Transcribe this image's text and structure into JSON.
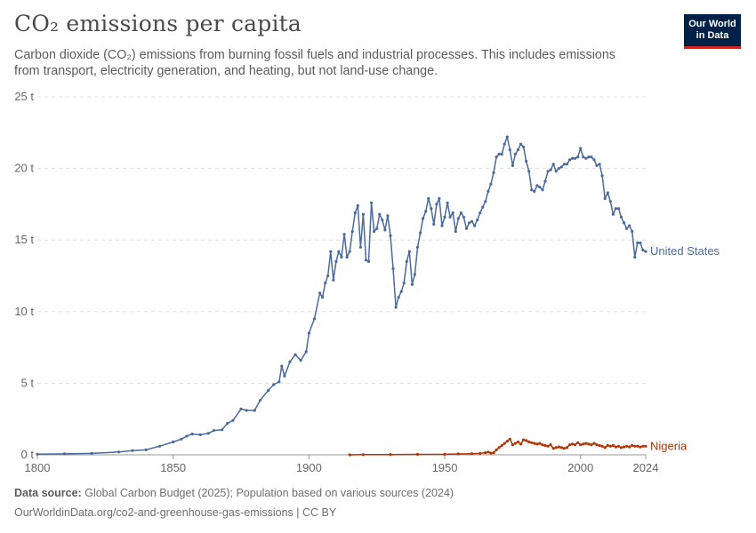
{
  "header": {
    "title": "CO₂ emissions per capita",
    "subtitle": "Carbon dioxide (CO₂) emissions from burning fossil fuels and industrial processes. This includes emissions from transport, electricity generation, and heating, but not land-use change.",
    "logo_line1": "Our World",
    "logo_line2": "in Data"
  },
  "footer": {
    "source_label": "Data source:",
    "source_text": "Global Carbon Budget (2025); Population based on various sources (2024)",
    "url_text": "OurWorldinData.org/co2-and-greenhouse-gas-emissions | CC BY"
  },
  "colors": {
    "united_states": "#4c6a9c",
    "nigeria": "#b13507",
    "grid": "#dddddd",
    "axis": "#999999"
  },
  "chart_data": {
    "type": "line",
    "xlim": [
      1800,
      2024
    ],
    "ylim": [
      0,
      25
    ],
    "x_ticks": [
      {
        "value": 1800,
        "label": "1800"
      },
      {
        "value": 1850,
        "label": "1850"
      },
      {
        "value": 1900,
        "label": "1900"
      },
      {
        "value": 1950,
        "label": "1950"
      },
      {
        "value": 2000,
        "label": "2000"
      },
      {
        "value": 2024,
        "label": "2024"
      }
    ],
    "y_ticks": [
      {
        "value": 0,
        "label": "0 t"
      },
      {
        "value": 5,
        "label": "5 t"
      },
      {
        "value": 10,
        "label": "10 t"
      },
      {
        "value": 15,
        "label": "15 t"
      },
      {
        "value": 20,
        "label": "20 t"
      },
      {
        "value": 25,
        "label": "25 t"
      }
    ],
    "grid": "horizontal dashed",
    "legend": "inline labels at line ends",
    "series": [
      {
        "name": "United States",
        "color": "#4c6a9c",
        "points": [
          [
            1800,
            0.05
          ],
          [
            1810,
            0.07
          ],
          [
            1820,
            0.1
          ],
          [
            1830,
            0.2
          ],
          [
            1835,
            0.3
          ],
          [
            1840,
            0.35
          ],
          [
            1845,
            0.6
          ],
          [
            1850,
            0.9
          ],
          [
            1853,
            1.1
          ],
          [
            1855,
            1.3
          ],
          [
            1857,
            1.45
          ],
          [
            1860,
            1.4
          ],
          [
            1863,
            1.5
          ],
          [
            1865,
            1.7
          ],
          [
            1868,
            1.75
          ],
          [
            1870,
            2.2
          ],
          [
            1872,
            2.4
          ],
          [
            1875,
            3.2
          ],
          [
            1877,
            3.1
          ],
          [
            1880,
            3.1
          ],
          [
            1882,
            3.8
          ],
          [
            1885,
            4.5
          ],
          [
            1887,
            4.9
          ],
          [
            1889,
            5.1
          ],
          [
            1890,
            6.2
          ],
          [
            1891,
            5.5
          ],
          [
            1893,
            6.5
          ],
          [
            1895,
            7.0
          ],
          [
            1897,
            6.6
          ],
          [
            1899,
            7.2
          ],
          [
            1900,
            8.5
          ],
          [
            1902,
            9.5
          ],
          [
            1904,
            11.3
          ],
          [
            1905,
            11.0
          ],
          [
            1906,
            12.0
          ],
          [
            1907,
            12.5
          ],
          [
            1908,
            14.2
          ],
          [
            1909,
            12.2
          ],
          [
            1910,
            13.5
          ],
          [
            1911,
            14.2
          ],
          [
            1912,
            13.8
          ],
          [
            1913,
            15.4
          ],
          [
            1914,
            13.8
          ],
          [
            1915,
            14.2
          ],
          [
            1916,
            15.6
          ],
          [
            1917,
            16.9
          ],
          [
            1918,
            17.4
          ],
          [
            1919,
            14.5
          ],
          [
            1920,
            16.8
          ],
          [
            1921,
            13.6
          ],
          [
            1922,
            13.5
          ],
          [
            1923,
            17.6
          ],
          [
            1924,
            15.6
          ],
          [
            1925,
            15.8
          ],
          [
            1926,
            16.8
          ],
          [
            1927,
            16.4
          ],
          [
            1928,
            15.7
          ],
          [
            1929,
            16.7
          ],
          [
            1930,
            15.3
          ],
          [
            1931,
            13.0
          ],
          [
            1932,
            10.3
          ],
          [
            1933,
            11.0
          ],
          [
            1934,
            11.4
          ],
          [
            1935,
            12.0
          ],
          [
            1936,
            13.5
          ],
          [
            1937,
            14.2
          ],
          [
            1938,
            11.9
          ],
          [
            1939,
            12.6
          ],
          [
            1940,
            14.5
          ],
          [
            1941,
            15.5
          ],
          [
            1942,
            16.5
          ],
          [
            1943,
            17.0
          ],
          [
            1944,
            17.9
          ],
          [
            1945,
            17.2
          ],
          [
            1946,
            16.1
          ],
          [
            1947,
            17.5
          ],
          [
            1948,
            17.9
          ],
          [
            1949,
            16.0
          ],
          [
            1950,
            16.6
          ],
          [
            1951,
            17.6
          ],
          [
            1952,
            16.6
          ],
          [
            1953,
            16.9
          ],
          [
            1954,
            15.6
          ],
          [
            1955,
            16.5
          ],
          [
            1956,
            16.9
          ],
          [
            1957,
            16.6
          ],
          [
            1958,
            15.8
          ],
          [
            1959,
            16.2
          ],
          [
            1960,
            16.3
          ],
          [
            1961,
            16.0
          ],
          [
            1962,
            16.4
          ],
          [
            1963,
            16.9
          ],
          [
            1964,
            17.3
          ],
          [
            1965,
            17.7
          ],
          [
            1966,
            18.4
          ],
          [
            1967,
            18.9
          ],
          [
            1968,
            19.7
          ],
          [
            1969,
            20.8
          ],
          [
            1970,
            21.0
          ],
          [
            1971,
            21.0
          ],
          [
            1972,
            21.7
          ],
          [
            1973,
            22.2
          ],
          [
            1974,
            21.3
          ],
          [
            1975,
            20.2
          ],
          [
            1976,
            21.0
          ],
          [
            1977,
            21.3
          ],
          [
            1978,
            21.7
          ],
          [
            1979,
            21.5
          ],
          [
            1980,
            20.5
          ],
          [
            1981,
            19.8
          ],
          [
            1982,
            18.5
          ],
          [
            1983,
            18.4
          ],
          [
            1984,
            18.8
          ],
          [
            1985,
            18.7
          ],
          [
            1986,
            18.5
          ],
          [
            1987,
            19.1
          ],
          [
            1988,
            19.8
          ],
          [
            1989,
            19.9
          ],
          [
            1990,
            20.3
          ],
          [
            1991,
            19.8
          ],
          [
            1992,
            20.0
          ],
          [
            1993,
            20.1
          ],
          [
            1994,
            20.3
          ],
          [
            1995,
            20.3
          ],
          [
            1996,
            20.6
          ],
          [
            1997,
            20.7
          ],
          [
            1998,
            20.7
          ],
          [
            1999,
            20.8
          ],
          [
            2000,
            21.4
          ],
          [
            2001,
            20.8
          ],
          [
            2002,
            20.7
          ],
          [
            2003,
            20.8
          ],
          [
            2004,
            20.8
          ],
          [
            2005,
            20.6
          ],
          [
            2006,
            20.2
          ],
          [
            2007,
            20.3
          ],
          [
            2008,
            19.5
          ],
          [
            2009,
            17.9
          ],
          [
            2010,
            18.3
          ],
          [
            2011,
            17.7
          ],
          [
            2012,
            16.8
          ],
          [
            2013,
            17.2
          ],
          [
            2014,
            17.2
          ],
          [
            2015,
            16.6
          ],
          [
            2016,
            16.2
          ],
          [
            2017,
            15.8
          ],
          [
            2018,
            16.0
          ],
          [
            2019,
            15.6
          ],
          [
            2020,
            13.8
          ],
          [
            2021,
            14.8
          ],
          [
            2022,
            14.8
          ],
          [
            2023,
            14.3
          ],
          [
            2024,
            14.2
          ]
        ]
      },
      {
        "name": "Nigeria",
        "color": "#b13507",
        "points": [
          [
            1915,
            0.0
          ],
          [
            1920,
            0.01
          ],
          [
            1930,
            0.02
          ],
          [
            1940,
            0.03
          ],
          [
            1950,
            0.04
          ],
          [
            1955,
            0.06
          ],
          [
            1960,
            0.08
          ],
          [
            1963,
            0.1
          ],
          [
            1965,
            0.15
          ],
          [
            1966,
            0.2
          ],
          [
            1967,
            0.12
          ],
          [
            1968,
            0.15
          ],
          [
            1969,
            0.35
          ],
          [
            1970,
            0.5
          ],
          [
            1971,
            0.65
          ],
          [
            1972,
            0.8
          ],
          [
            1973,
            0.95
          ],
          [
            1974,
            1.1
          ],
          [
            1975,
            0.7
          ],
          [
            1976,
            0.8
          ],
          [
            1977,
            0.9
          ],
          [
            1978,
            0.75
          ],
          [
            1979,
            1.05
          ],
          [
            1980,
            1.0
          ],
          [
            1981,
            0.9
          ],
          [
            1982,
            0.85
          ],
          [
            1983,
            0.8
          ],
          [
            1984,
            0.75
          ],
          [
            1985,
            0.8
          ],
          [
            1986,
            0.7
          ],
          [
            1987,
            0.65
          ],
          [
            1988,
            0.6
          ],
          [
            1989,
            0.7
          ],
          [
            1990,
            0.45
          ],
          [
            1991,
            0.5
          ],
          [
            1992,
            0.55
          ],
          [
            1993,
            0.5
          ],
          [
            1994,
            0.45
          ],
          [
            1995,
            0.5
          ],
          [
            1996,
            0.7
          ],
          [
            1997,
            0.75
          ],
          [
            1998,
            0.7
          ],
          [
            1999,
            0.85
          ],
          [
            2000,
            0.7
          ],
          [
            2001,
            0.75
          ],
          [
            2002,
            0.8
          ],
          [
            2003,
            0.75
          ],
          [
            2004,
            0.7
          ],
          [
            2005,
            0.8
          ],
          [
            2006,
            0.7
          ],
          [
            2007,
            0.65
          ],
          [
            2008,
            0.6
          ],
          [
            2009,
            0.5
          ],
          [
            2010,
            0.65
          ],
          [
            2011,
            0.6
          ],
          [
            2012,
            0.65
          ],
          [
            2013,
            0.55
          ],
          [
            2014,
            0.6
          ],
          [
            2015,
            0.5
          ],
          [
            2016,
            0.55
          ],
          [
            2017,
            0.6
          ],
          [
            2018,
            0.55
          ],
          [
            2019,
            0.65
          ],
          [
            2020,
            0.6
          ],
          [
            2021,
            0.6
          ],
          [
            2022,
            0.55
          ],
          [
            2023,
            0.6
          ],
          [
            2024,
            0.6
          ]
        ]
      }
    ]
  }
}
